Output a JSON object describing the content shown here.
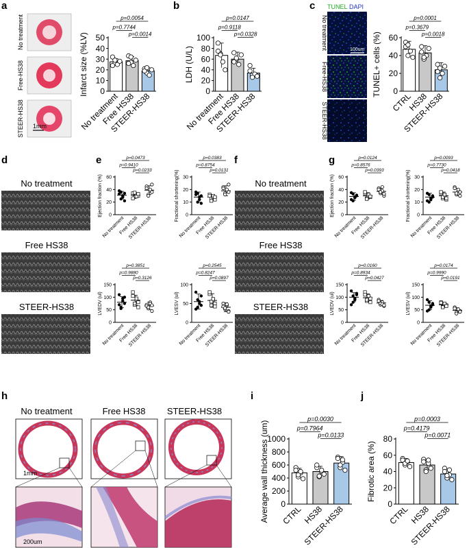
{
  "panels": {
    "a": {
      "letter": "a",
      "row_labels": [
        "No treatment",
        "Free-HS38",
        "STEER-HS38"
      ],
      "scale_bar": "1mm"
    },
    "b": {
      "letter": "b"
    },
    "c": {
      "letter": "c",
      "stain_tunel": "TUNEL",
      "stain_dapi": "DAPI",
      "row_labels": [
        "No treatment",
        "Free-HS38",
        "STEER-HS38"
      ],
      "scale_bar": "100um"
    },
    "d": {
      "letter": "d",
      "row_labels": [
        "No treatment",
        "Free HS38",
        "STEER-HS38"
      ]
    },
    "e": {
      "letter": "e"
    },
    "f": {
      "letter": "f",
      "row_labels": [
        "No treatment",
        "Free HS38",
        "STEER-HS38"
      ]
    },
    "g": {
      "letter": "g"
    },
    "h": {
      "letter": "h",
      "col_labels": [
        "No treatment",
        "Free HS38",
        "STEER-HS38"
      ],
      "scale_bar_top": "1mm",
      "scale_bar_bottom": "200um"
    },
    "i": {
      "letter": "i"
    },
    "j": {
      "letter": "j"
    }
  },
  "colors": {
    "white_bar": "#ffffff",
    "grey_bar": "#c8c8c8",
    "blue_bar": "#a8c8e8",
    "tunel_green": "#22aa22",
    "dapi_blue": "#2233cc"
  },
  "chart_data": [
    {
      "id": "a-chart",
      "type": "bar",
      "categories": [
        "No treatment",
        "Free HS38",
        "STEER-HS38"
      ],
      "values": [
        27.5,
        28.5,
        19
      ],
      "errors": [
        3,
        4,
        3
      ],
      "ylabel": "Infarct size (%LV)",
      "ylim": [
        0,
        50
      ],
      "yticks": [
        "0",
        "10",
        "20",
        "30",
        "40",
        "50"
      ],
      "points": [
        [
          32,
          26,
          25,
          28,
          24,
          29
        ],
        [
          33,
          27,
          24,
          29,
          26,
          32
        ],
        [
          21,
          17,
          15,
          20,
          19,
          22
        ]
      ],
      "pvalues": [
        {
          "text": "p=0.0054",
          "from": 0,
          "to": 2
        },
        {
          "text": "p=0.7744",
          "from": 0,
          "to": 1
        },
        {
          "text": "p=0.0014",
          "from": 1,
          "to": 2
        }
      ]
    },
    {
      "id": "b-chart",
      "type": "bar",
      "categories": [
        "No treatment",
        "Free HS38",
        "STEER-HS38"
      ],
      "values": [
        67,
        60,
        34
      ],
      "errors": [
        23,
        13,
        9
      ],
      "ylabel": "LDH (U/L)",
      "ylim": [
        0,
        100
      ],
      "yticks": [
        "0",
        "20",
        "40",
        "60",
        "80",
        "100"
      ],
      "points": [
        [
          90,
          70,
          55,
          40,
          75,
          68
        ],
        [
          72,
          60,
          50,
          68,
          55,
          62
        ],
        [
          48,
          30,
          32,
          28,
          38,
          26
        ]
      ],
      "pvalues": [
        {
          "text": "p=0.0147",
          "from": 0,
          "to": 2
        },
        {
          "text": "p=0.9118",
          "from": 0,
          "to": 1
        },
        {
          "text": "p=0.0328",
          "from": 1,
          "to": 2
        }
      ]
    },
    {
      "id": "c-chart",
      "type": "bar",
      "categories": [
        "CTRL",
        "HS38",
        "STEER-HS38"
      ],
      "values": [
        47,
        43,
        24
      ],
      "errors": [
        9,
        8,
        8
      ],
      "ylabel": "TUNEL+ cells (%)",
      "ylim": [
        0,
        60
      ],
      "yticks": [
        "0",
        "20",
        "40",
        "60"
      ],
      "points": [
        [
          55,
          40,
          45,
          38,
          50,
          52
        ],
        [
          50,
          36,
          40,
          48,
          44,
          38
        ],
        [
          30,
          15,
          20,
          28,
          22,
          26
        ]
      ],
      "pvalues": [
        {
          "text": "p=0.0001",
          "from": 0,
          "to": 2
        },
        {
          "text": "p=0.3679",
          "from": 0,
          "to": 1
        },
        {
          "text": "p=0.0018",
          "from": 1,
          "to": 2
        }
      ]
    },
    {
      "id": "e1",
      "type": "scatter",
      "categories": [
        "No treatment",
        "Free HS38",
        "STEER-HS38"
      ],
      "values": [
        31,
        31,
        39
      ],
      "errors": [
        6,
        4,
        7
      ],
      "ylabel": "Ejection fraction (%)",
      "ylim": [
        0,
        60
      ],
      "yticks": [
        "0",
        "20",
        "40",
        "60"
      ],
      "points": [
        [
          38,
          25,
          30,
          22,
          33,
          36,
          28,
          34
        ],
        [
          34,
          28,
          32,
          30,
          26,
          35,
          29,
          33
        ],
        [
          45,
          32,
          38,
          48,
          42,
          30,
          40,
          36
        ]
      ],
      "pvalues": [
        {
          "text": "p=0.0473",
          "from": 0,
          "to": 2
        },
        {
          "text": "p=0.9410",
          "from": 0,
          "to": 1
        },
        {
          "text": "p=0.0233",
          "from": 1,
          "to": 2
        }
      ]
    },
    {
      "id": "e2",
      "type": "scatter",
      "categories": [
        "No treatment",
        "Free HS38",
        "STEER-HS38"
      ],
      "values": [
        14,
        14,
        19
      ],
      "errors": [
        4,
        2,
        4
      ],
      "ylabel": "Fractional shortening(%)",
      "ylim": [
        0,
        30
      ],
      "yticks": [
        "0",
        "10",
        "20",
        "30"
      ],
      "points": [
        [
          18,
          10,
          14,
          9,
          16,
          17,
          12,
          15
        ],
        [
          16,
          13,
          14,
          12,
          15,
          11,
          15,
          14
        ],
        [
          22,
          17,
          19,
          24,
          21,
          16,
          20,
          18
        ]
      ],
      "pvalues": [
        {
          "text": "p=0.0383",
          "from": 0,
          "to": 2
        },
        {
          "text": "p=0.8754",
          "from": 0,
          "to": 1
        },
        {
          "text": "p=0.0131",
          "from": 1,
          "to": 2
        }
      ]
    },
    {
      "id": "e3",
      "type": "scatter",
      "categories": [
        "No treatment",
        "Free HS38",
        "STEER-HS38"
      ],
      "values": [
        80,
        88,
        65
      ],
      "errors": [
        22,
        20,
        15
      ],
      "ylabel": "LVEDV (ul)",
      "ylim": [
        0,
        150
      ],
      "yticks": [
        "0",
        "50",
        "100",
        "150"
      ],
      "points": [
        [
          110,
          60,
          85,
          100,
          70,
          55,
          95,
          75
        ],
        [
          105,
          70,
          90,
          80,
          120,
          75,
          95,
          60
        ],
        [
          70,
          55,
          80,
          45,
          65,
          60,
          75,
          68
        ]
      ],
      "pvalues": [
        {
          "text": "p=0.3851",
          "from": 0,
          "to": 2
        },
        {
          "text": "p=0.9880",
          "from": 0,
          "to": 1
        },
        {
          "text": "p=0.3126",
          "from": 1,
          "to": 2
        }
      ]
    },
    {
      "id": "e4",
      "type": "scatter",
      "categories": [
        "No treatment",
        "Free HS38",
        "STEER-HS38"
      ],
      "values": [
        55,
        58,
        40
      ],
      "errors": [
        20,
        18,
        12
      ],
      "ylabel": "LVESV (ul)",
      "ylim": [
        0,
        100
      ],
      "yticks": [
        "0",
        "50",
        "100"
      ],
      "points": [
        [
          80,
          40,
          55,
          70,
          35,
          60,
          50,
          45
        ],
        [
          75,
          45,
          60,
          50,
          80,
          55,
          62,
          42
        ],
        [
          50,
          35,
          45,
          30,
          42,
          38,
          48,
          28
        ]
      ],
      "pvalues": [
        {
          "text": "p=0.2545",
          "from": 0,
          "to": 2
        },
        {
          "text": "p=0.8247",
          "from": 0,
          "to": 1
        },
        {
          "text": "p=0.0897",
          "from": 1,
          "to": 2
        }
      ]
    },
    {
      "id": "g1",
      "type": "scatter",
      "categories": [
        "No treatment",
        "Free HS38",
        "STEER-HS38"
      ],
      "values": [
        29,
        30,
        37
      ],
      "errors": [
        6,
        5,
        5
      ],
      "ylabel": "Ejection fraction (%)",
      "ylim": [
        0,
        60
      ],
      "yticks": [
        "0",
        "20",
        "40",
        "60"
      ],
      "points": [
        [
          35,
          22,
          28,
          30,
          24,
          33,
          27,
          31
        ],
        [
          34,
          26,
          30,
          28,
          36,
          25,
          32,
          29
        ],
        [
          42,
          34,
          38,
          30,
          40,
          36,
          44,
          33
        ]
      ],
      "pvalues": [
        {
          "text": "p=0.0124",
          "from": 0,
          "to": 2
        },
        {
          "text": "p=0.8576",
          "from": 0,
          "to": 1
        },
        {
          "text": "p=0.0393",
          "from": 1,
          "to": 2
        }
      ]
    },
    {
      "id": "g2",
      "type": "scatter",
      "categories": [
        "No treatment",
        "Free HS38",
        "STEER-HS38"
      ],
      "values": [
        14,
        15,
        18
      ],
      "errors": [
        3,
        3,
        3
      ],
      "ylabel": "Fractional shortening(%)",
      "ylim": [
        0,
        30
      ],
      "yticks": [
        "0",
        "10",
        "20",
        "30"
      ],
      "points": [
        [
          17,
          10,
          13,
          15,
          11,
          16,
          12,
          14
        ],
        [
          17,
          13,
          15,
          12,
          18,
          14,
          16,
          13
        ],
        [
          22,
          16,
          19,
          15,
          21,
          17,
          20,
          18
        ]
      ],
      "pvalues": [
        {
          "text": "p=0.0093",
          "from": 0,
          "to": 2
        },
        {
          "text": "p=0.7730",
          "from": 0,
          "to": 1
        },
        {
          "text": "p=0.0418",
          "from": 1,
          "to": 2
        }
      ]
    },
    {
      "id": "g3",
      "type": "scatter",
      "categories": [
        "No treatment",
        "Free HS38",
        "STEER-HS38"
      ],
      "values": [
        100,
        98,
        77
      ],
      "errors": [
        18,
        15,
        10
      ],
      "ylabel": "LVEDV (ul)",
      "ylim": [
        0,
        150
      ],
      "yticks": [
        "0",
        "50",
        "100",
        "150"
      ],
      "points": [
        [
          125,
          80,
          95,
          110,
          70,
          105,
          90,
          115
        ],
        [
          120,
          85,
          100,
          95,
          110,
          90,
          105,
          80
        ],
        [
          90,
          70,
          80,
          65,
          85,
          75,
          72,
          68
        ]
      ],
      "pvalues": [
        {
          "text": "p=0.0160",
          "from": 0,
          "to": 2
        },
        {
          "text": "p=0.8934",
          "from": 0,
          "to": 1
        },
        {
          "text": "p=0.0427",
          "from": 1,
          "to": 2
        }
      ]
    },
    {
      "id": "g4",
      "type": "scatter",
      "categories": [
        "No treatment",
        "Free HS38",
        "STEER-HS38"
      ],
      "values": [
        68,
        70,
        48
      ],
      "errors": [
        18,
        10,
        10
      ],
      "ylabel": "LVESV (ul)",
      "ylim": [
        0,
        150
      ],
      "yticks": [
        "0",
        "50",
        "100",
        "150"
      ],
      "points": [
        [
          90,
          50,
          65,
          75,
          45,
          80,
          60,
          70
        ],
        [
          80,
          62,
          72,
          68,
          78,
          60,
          75,
          65
        ],
        [
          60,
          40,
          50,
          45,
          55,
          35,
          52,
          42
        ]
      ],
      "pvalues": [
        {
          "text": "p=0.0174",
          "from": 0,
          "to": 2
        },
        {
          "text": "p=0.9990",
          "from": 0,
          "to": 1
        },
        {
          "text": "p=0.0191",
          "from": 1,
          "to": 2
        }
      ]
    },
    {
      "id": "i-chart",
      "type": "bar",
      "categories": [
        "CTRL",
        "HS38",
        "STEER-HS38"
      ],
      "values": [
        480,
        500,
        630
      ],
      "errors": [
        70,
        80,
        100
      ],
      "ylabel": "Average wall thickness (um)",
      "ylim": [
        0,
        1000
      ],
      "yticks": [
        "0",
        "200",
        "400",
        "600",
        "800",
        "1000"
      ],
      "points": [
        [
          560,
          420,
          480,
          390,
          520,
          450,
          500
        ],
        [
          560,
          420,
          500,
          460,
          600,
          430,
          520
        ],
        [
          720,
          560,
          640,
          520,
          700,
          600,
          680
        ]
      ],
      "pvalues": [
        {
          "text": "p=0.0030",
          "from": 0,
          "to": 2
        },
        {
          "text": "p=0.7964",
          "from": 0,
          "to": 1
        },
        {
          "text": "p=0.0133",
          "from": 1,
          "to": 2
        }
      ]
    },
    {
      "id": "j-chart",
      "type": "bar",
      "categories": [
        "CTRL",
        "HS38",
        "STEER-HS38"
      ],
      "values": [
        51,
        48,
        37
      ],
      "errors": [
        5,
        7,
        6
      ],
      "ylabel": "Fibrotic area (%)",
      "ylim": [
        0,
        80
      ],
      "yticks": [
        "0",
        "20",
        "40",
        "60",
        "80"
      ],
      "points": [
        [
          56,
          48,
          52,
          46,
          54,
          50,
          53
        ],
        [
          55,
          42,
          50,
          44,
          52,
          40,
          54
        ],
        [
          44,
          32,
          36,
          30,
          40,
          35,
          42
        ]
      ],
      "pvalues": [
        {
          "text": "p=0.0003",
          "from": 0,
          "to": 2
        },
        {
          "text": "p=0.4179",
          "from": 0,
          "to": 1
        },
        {
          "text": "p=0.0071",
          "from": 1,
          "to": 2
        }
      ]
    }
  ]
}
